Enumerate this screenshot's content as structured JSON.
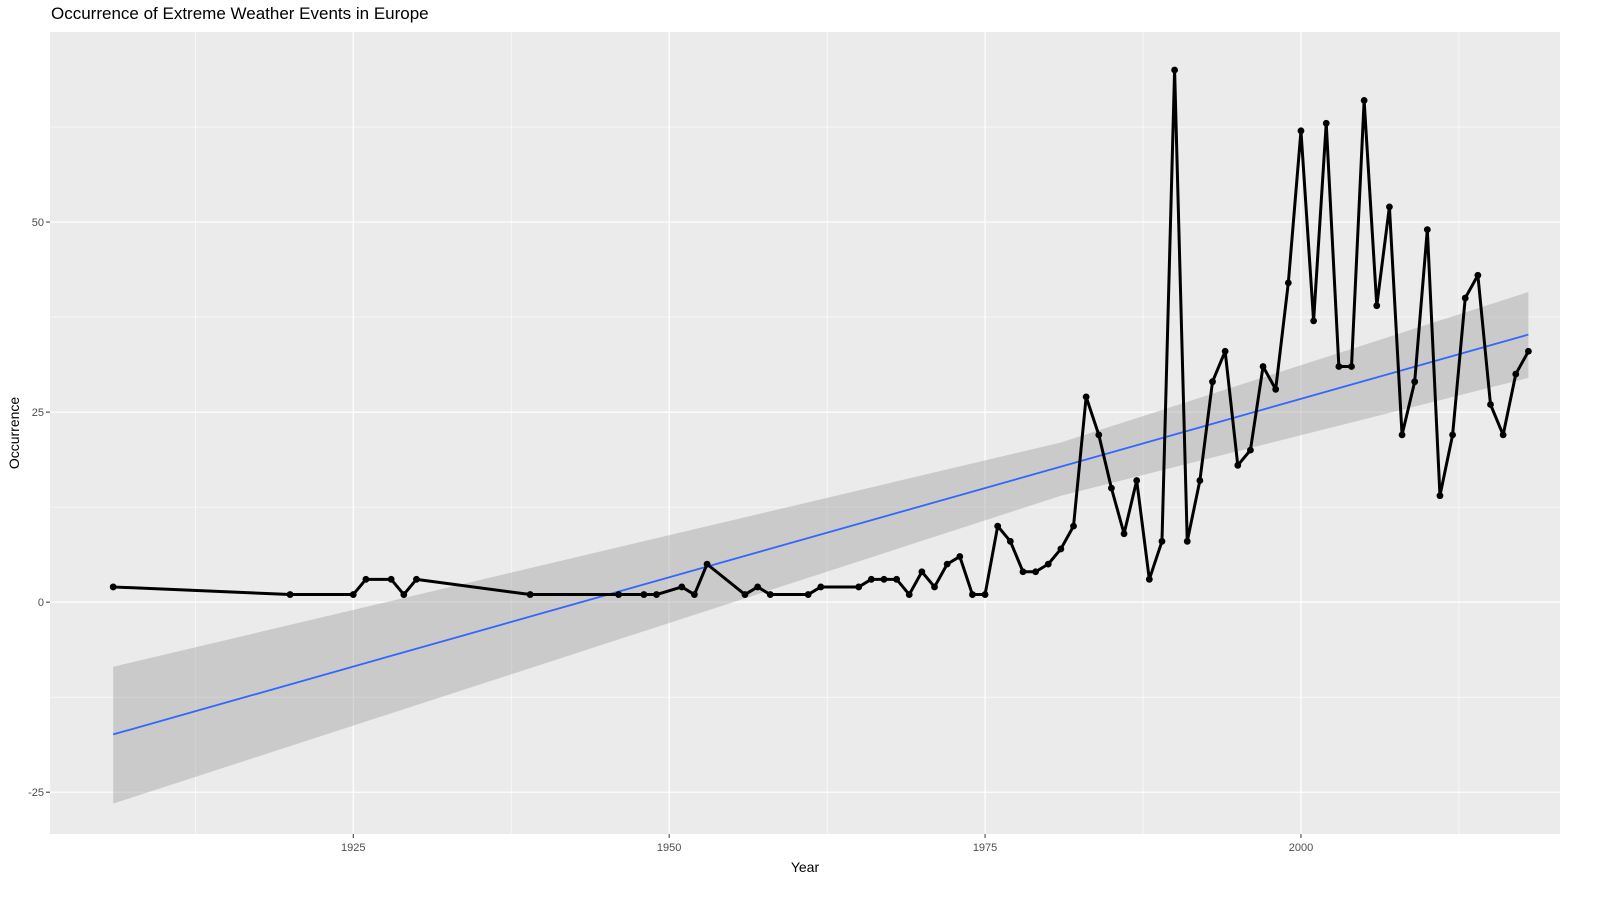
{
  "chart_data": {
    "type": "line",
    "title": "Occurrence of Extreme Weather Events in Europe",
    "xlabel": "Year",
    "ylabel": "Occurrence",
    "xlim": [
      1901,
      2020.5
    ],
    "ylim": [
      -30.5,
      75
    ],
    "x_ticks": [
      1925,
      1950,
      1975,
      2000
    ],
    "y_ticks": [
      -25,
      0,
      25,
      50
    ],
    "grid": true,
    "panel_background": "#ebebeb",
    "grid_color": "#ffffff",
    "series": [
      {
        "x": [
          1906,
          1920,
          1925,
          1926,
          1928,
          1929,
          1930,
          1939,
          1946,
          1948,
          1949,
          1951,
          1952,
          1953,
          1956,
          1957,
          1958,
          1961,
          1962,
          1965,
          1966,
          1967,
          1968,
          1969,
          1970,
          1971,
          1972,
          1973,
          1974,
          1975,
          1976,
          1977,
          1978,
          1979,
          1980,
          1981,
          1982,
          1983,
          1984,
          1985,
          1986,
          1987,
          1988,
          1989,
          1990,
          1991,
          1992,
          1993,
          1994,
          1995,
          1996,
          1997,
          1998,
          1999,
          2000,
          2001,
          2002,
          2003,
          2004,
          2005,
          2006,
          2007,
          2008,
          2009,
          2010,
          2011,
          2012,
          2013,
          2014,
          2015,
          2016,
          2017,
          2018
        ],
        "y": [
          2,
          1,
          1,
          3,
          3,
          1,
          3,
          1,
          1,
          1,
          1,
          2,
          1,
          5,
          1,
          2,
          1,
          1,
          2,
          2,
          3,
          3,
          3,
          1,
          4,
          2,
          5,
          6,
          1,
          1,
          10,
          8,
          4,
          4,
          5,
          7,
          10,
          27,
          22,
          15,
          9,
          16,
          3,
          8,
          70,
          8,
          16,
          29,
          33,
          18,
          20,
          31,
          28,
          42,
          62,
          37,
          63,
          31,
          31,
          66,
          39,
          52,
          22,
          29,
          49,
          14,
          22,
          40,
          43,
          26,
          22,
          30,
          33
        ],
        "color": "#000000"
      }
    ],
    "trend": {
      "method": "linear regression",
      "color": "#3366ff",
      "band_color": "#999999",
      "line": [
        {
          "x": 1906,
          "y": -17.4
        },
        {
          "x": 2018,
          "y": 35.2
        }
      ],
      "band": [
        {
          "x": 1906,
          "lo": -26.5,
          "hi": -8.5
        },
        {
          "x": 1981,
          "lo": 14,
          "hi": 21
        },
        {
          "x": 2018,
          "lo": 29.5,
          "hi": 40.8
        }
      ]
    }
  }
}
